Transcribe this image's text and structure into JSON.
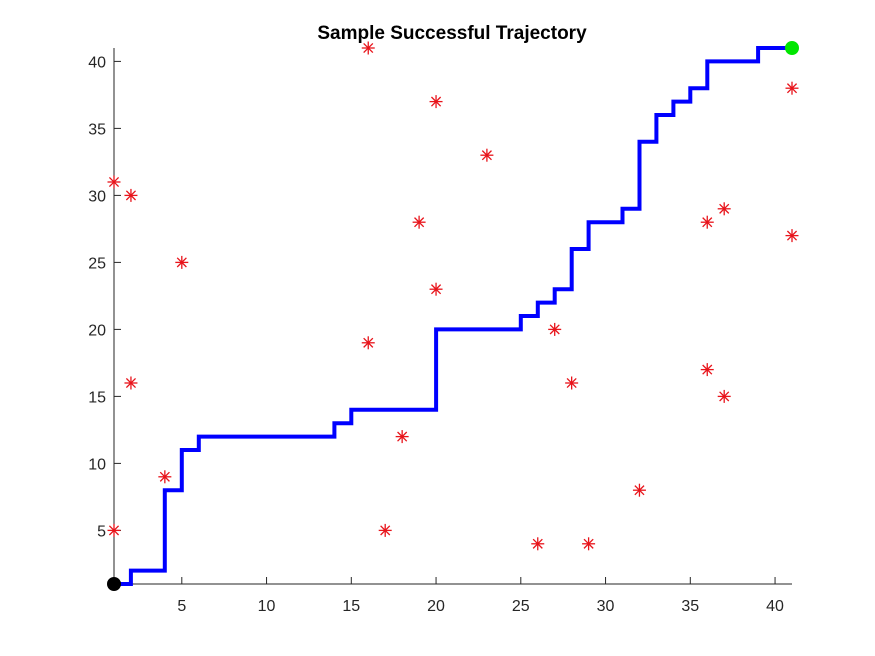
{
  "chart_data": {
    "type": "line",
    "title": "Sample Successful Trajectory",
    "xlabel": "",
    "ylabel": "",
    "xlim": [
      1,
      41
    ],
    "ylim": [
      1,
      41
    ],
    "x_ticks": [
      5,
      10,
      15,
      20,
      25,
      30,
      35,
      40
    ],
    "y_ticks": [
      5,
      10,
      15,
      20,
      25,
      30,
      35,
      40
    ],
    "grid": false,
    "series": [
      {
        "kind": "step-line",
        "color": "#0000ff",
        "points": [
          [
            1,
            1
          ],
          [
            2,
            1
          ],
          [
            2,
            2
          ],
          [
            4,
            2
          ],
          [
            4,
            8
          ],
          [
            5,
            8
          ],
          [
            5,
            11
          ],
          [
            6,
            11
          ],
          [
            6,
            12
          ],
          [
            14,
            12
          ],
          [
            14,
            13
          ],
          [
            15,
            13
          ],
          [
            15,
            14
          ],
          [
            20,
            14
          ],
          [
            20,
            20
          ],
          [
            25,
            20
          ],
          [
            25,
            21
          ],
          [
            26,
            21
          ],
          [
            26,
            22
          ],
          [
            27,
            22
          ],
          [
            27,
            23
          ],
          [
            28,
            23
          ],
          [
            28,
            26
          ],
          [
            29,
            26
          ],
          [
            29,
            28
          ],
          [
            31,
            28
          ],
          [
            31,
            29
          ],
          [
            32,
            29
          ],
          [
            32,
            34
          ],
          [
            33,
            34
          ],
          [
            33,
            36
          ],
          [
            34,
            36
          ],
          [
            34,
            37
          ],
          [
            35,
            37
          ],
          [
            35,
            38
          ],
          [
            36,
            38
          ],
          [
            36,
            40
          ],
          [
            39,
            40
          ],
          [
            39,
            41
          ],
          [
            41,
            41
          ]
        ]
      },
      {
        "kind": "obstacles",
        "color": "#e8141b",
        "marker": "asterisk",
        "points": [
          [
            1,
            31
          ],
          [
            2,
            30
          ],
          [
            1,
            5
          ],
          [
            2,
            16
          ],
          [
            4,
            9
          ],
          [
            5,
            25
          ],
          [
            16,
            41
          ],
          [
            16,
            19
          ],
          [
            17,
            5
          ],
          [
            18,
            12
          ],
          [
            19,
            28
          ],
          [
            20,
            37
          ],
          [
            20,
            23
          ],
          [
            23,
            33
          ],
          [
            26,
            4
          ],
          [
            27,
            20
          ],
          [
            28,
            16
          ],
          [
            29,
            4
          ],
          [
            32,
            8
          ],
          [
            36,
            28
          ],
          [
            37,
            29
          ],
          [
            36,
            17
          ],
          [
            37,
            15
          ],
          [
            41,
            38
          ],
          [
            41,
            27
          ]
        ]
      },
      {
        "kind": "start",
        "color": "#000000",
        "marker": "circle",
        "points": [
          [
            1,
            1
          ]
        ]
      },
      {
        "kind": "goal",
        "color": "#00e600",
        "marker": "circle",
        "points": [
          [
            41,
            41
          ]
        ]
      }
    ]
  }
}
